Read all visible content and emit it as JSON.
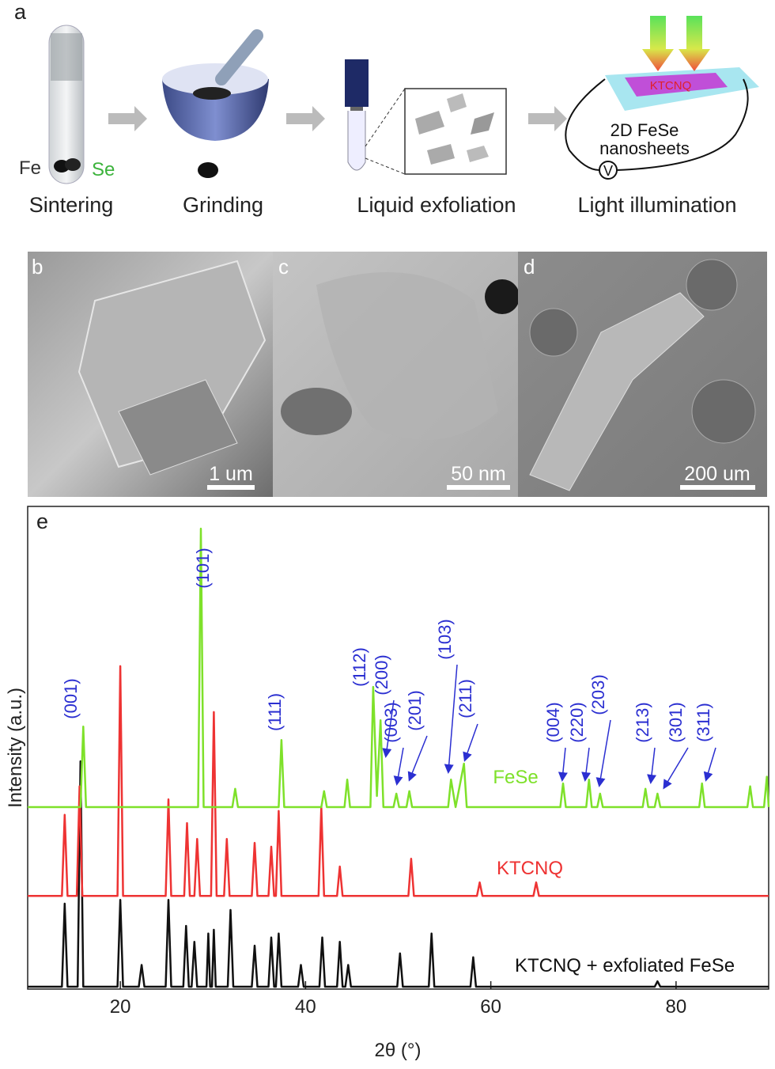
{
  "panel_a": {
    "label": "a",
    "fe": "Fe",
    "se": "Se",
    "steps": [
      "Sintering",
      "Grinding",
      "Liquid exfoliation",
      "Light illumination"
    ],
    "device_top": "KTCNQ",
    "device_line1": "2D FeSe",
    "device_line2": "nanosheets",
    "meter": "V"
  },
  "micrographs": [
    {
      "label": "b",
      "scale": "1 um"
    },
    {
      "label": "c",
      "scale": "50 nm"
    },
    {
      "label": "d",
      "scale": "200 um"
    }
  ],
  "chart_data": {
    "type": "line",
    "panel_label": "e",
    "xlabel": "2θ (°)",
    "ylabel": "Intensity (a.u.)",
    "xlim": [
      10,
      90
    ],
    "ylim": [
      0,
      100
    ],
    "xticks": [
      20,
      40,
      60,
      80
    ],
    "annotations": [
      "(001)",
      "(101)",
      "(111)",
      "(112)",
      "(200)",
      "(003)",
      "(201)",
      "(103)",
      "(211)",
      "(004)",
      "(220)",
      "(203)",
      "(213)",
      "(301)",
      "(311)"
    ],
    "annotation_color": "#2b2fd1",
    "series": [
      {
        "name": "FeSe",
        "color": "#7ee12a",
        "x": [
          10,
          15.7,
          16.0,
          16.3,
          28.4,
          28.7,
          29.0,
          32.1,
          32.4,
          32.7,
          37.1,
          37.4,
          37.7,
          41.7,
          42.0,
          42.3,
          44.2,
          44.5,
          44.8,
          47.0,
          47.3,
          47.7,
          48.1,
          48.4,
          49.5,
          49.8,
          50.1,
          50.9,
          51.2,
          51.5,
          55.4,
          55.7,
          56.2,
          57.1,
          57.4,
          67.5,
          67.8,
          68.1,
          70.3,
          70.6,
          70.9,
          71.5,
          71.8,
          72.1,
          76.4,
          76.7,
          77.0,
          77.7,
          78.0,
          78.3,
          82.5,
          82.8,
          83.1,
          87.7,
          88.0,
          88.3,
          89.5,
          89.8,
          90
        ],
        "values": [
          37.7,
          37.7,
          54.4,
          37.7,
          37.7,
          95.4,
          37.7,
          37.7,
          41.5,
          37.7,
          37.7,
          51.6,
          37.7,
          37.7,
          41.0,
          37.7,
          37.7,
          43.4,
          37.7,
          37.7,
          62.6,
          40.0,
          55.7,
          37.7,
          37.7,
          40.5,
          37.7,
          37.7,
          41.0,
          37.7,
          37.7,
          43.4,
          37.7,
          46.7,
          37.7,
          37.7,
          42.6,
          37.7,
          37.7,
          43.4,
          37.7,
          37.7,
          40.5,
          37.7,
          37.7,
          41.5,
          37.7,
          37.7,
          40.5,
          37.7,
          37.7,
          42.6,
          37.7,
          37.7,
          42.0,
          37.7,
          37.7,
          44.0,
          37.7
        ]
      },
      {
        "name": "KTCNQ",
        "color": "#ee3333",
        "x": [
          10,
          13.7,
          14.0,
          14.3,
          15.3,
          15.6,
          15.9,
          19.7,
          20.0,
          20.3,
          24.9,
          25.2,
          25.5,
          26.9,
          27.2,
          27.5,
          28.0,
          28.3,
          28.6,
          29.8,
          30.1,
          30.4,
          31.2,
          31.5,
          31.8,
          34.2,
          34.5,
          34.8,
          36.0,
          36.3,
          36.6,
          36.8,
          37.1,
          37.4,
          41.4,
          41.7,
          42.0,
          43.4,
          43.7,
          44.0,
          51.1,
          51.4,
          51.7,
          58.5,
          58.8,
          59.1,
          64.6,
          64.9,
          65.2,
          90
        ],
        "values": [
          19.3,
          19.3,
          36.1,
          19.3,
          19.3,
          42.0,
          19.3,
          19.3,
          66.9,
          19.3,
          19.3,
          39.3,
          19.3,
          19.3,
          34.4,
          19.3,
          19.3,
          31.1,
          19.3,
          19.3,
          57.4,
          19.3,
          19.3,
          31.1,
          19.3,
          19.3,
          30.3,
          19.3,
          19.3,
          29.5,
          19.3,
          19.3,
          36.9,
          19.3,
          19.3,
          37.7,
          19.3,
          19.3,
          25.4,
          19.3,
          19.3,
          27.0,
          19.3,
          19.3,
          22.1,
          19.3,
          19.3,
          22.1,
          19.3,
          19.3
        ]
      },
      {
        "name": "KTCNQ + exfoliated FeSe",
        "color": "#111111",
        "x": [
          10,
          13.7,
          14.0,
          14.3,
          15.4,
          15.7,
          16.0,
          19.7,
          20.0,
          20.3,
          22.0,
          22.3,
          22.6,
          24.9,
          25.2,
          25.5,
          26.8,
          27.1,
          27.4,
          27.7,
          28.0,
          28.3,
          29.3,
          29.5,
          29.7,
          29.9,
          30.1,
          30.3,
          31.6,
          31.9,
          32.2,
          34.2,
          34.5,
          34.8,
          36.0,
          36.3,
          36.6,
          36.8,
          37.1,
          37.4,
          39.2,
          39.5,
          39.8,
          41.5,
          41.8,
          42.1,
          43.4,
          43.7,
          44.0,
          44.3,
          44.6,
          44.9,
          49.9,
          50.2,
          50.5,
          53.3,
          53.6,
          53.9,
          57.8,
          58.1,
          58.4,
          77.7,
          78.0,
          78.3,
          90
        ],
        "values": [
          0.5,
          0.5,
          17.7,
          0.5,
          0.5,
          47.2,
          0.5,
          0.5,
          18.5,
          0.5,
          0.5,
          5.0,
          0.5,
          0.5,
          18.5,
          0.5,
          0.5,
          13.1,
          0.5,
          0.5,
          9.8,
          0.5,
          0.5,
          11.5,
          0.5,
          0.5,
          12.3,
          0.5,
          0.5,
          16.4,
          0.5,
          0.5,
          9.0,
          0.5,
          0.5,
          10.7,
          0.5,
          0.5,
          11.5,
          0.5,
          0.5,
          5.0,
          0.5,
          0.5,
          10.7,
          0.5,
          0.5,
          9.8,
          0.5,
          0.5,
          5.0,
          0.5,
          0.5,
          7.4,
          0.5,
          0.5,
          11.5,
          0.5,
          0.5,
          6.6,
          0.5,
          0.5,
          1.6,
          0.5,
          0.5
        ]
      }
    ]
  }
}
